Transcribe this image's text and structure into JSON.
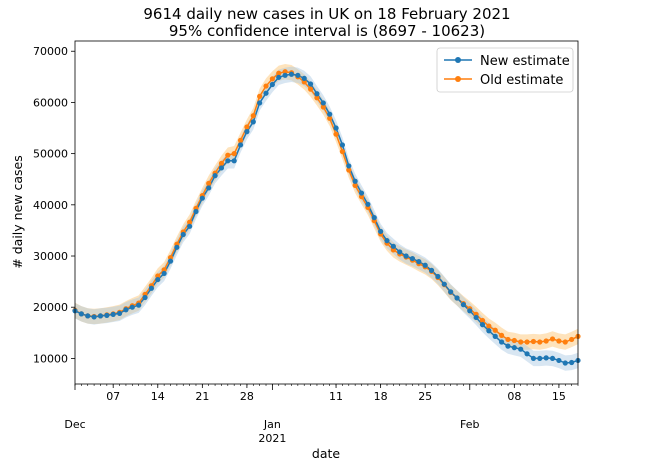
{
  "chart_data": {
    "type": "line",
    "title_line1": "9614 daily new cases in UK on 18 February 2021",
    "title_line2": "95% confidence interval is (8697 - 10623)",
    "xlabel": "date",
    "ylabel": "# daily new cases",
    "ylim": [
      5000,
      72000
    ],
    "xlim": [
      "2020-12-01",
      "2021-02-18"
    ],
    "yticks": [
      10000,
      20000,
      30000,
      40000,
      50000,
      60000,
      70000
    ],
    "ytick_labels": [
      "10000",
      "20000",
      "30000",
      "40000",
      "50000",
      "60000",
      "70000"
    ],
    "xticks_minor": [
      {
        "date": "2020-12-07",
        "label": "07"
      },
      {
        "date": "2020-12-14",
        "label": "14"
      },
      {
        "date": "2020-12-21",
        "label": "21"
      },
      {
        "date": "2020-12-28",
        "label": "28"
      },
      {
        "date": "2021-01-11",
        "label": "11"
      },
      {
        "date": "2021-01-18",
        "label": "18"
      },
      {
        "date": "2021-01-25",
        "label": "25"
      },
      {
        "date": "2021-02-08",
        "label": "08"
      },
      {
        "date": "2021-02-15",
        "label": "15"
      }
    ],
    "xticks_major": [
      {
        "date": "2020-12-01",
        "label": "Dec",
        "sub": ""
      },
      {
        "date": "2021-01-01",
        "label": "Jan",
        "sub": "2021"
      },
      {
        "date": "2021-02-01",
        "label": "Feb",
        "sub": ""
      }
    ],
    "grid": false,
    "legend_position": "top-right",
    "x": [
      "2020-12-01",
      "2020-12-02",
      "2020-12-03",
      "2020-12-04",
      "2020-12-05",
      "2020-12-06",
      "2020-12-07",
      "2020-12-08",
      "2020-12-09",
      "2020-12-10",
      "2020-12-11",
      "2020-12-12",
      "2020-12-13",
      "2020-12-14",
      "2020-12-15",
      "2020-12-16",
      "2020-12-17",
      "2020-12-18",
      "2020-12-19",
      "2020-12-20",
      "2020-12-21",
      "2020-12-22",
      "2020-12-23",
      "2020-12-24",
      "2020-12-25",
      "2020-12-26",
      "2020-12-27",
      "2020-12-28",
      "2020-12-29",
      "2020-12-30",
      "2020-12-31",
      "2021-01-01",
      "2021-01-02",
      "2021-01-03",
      "2021-01-04",
      "2021-01-05",
      "2021-01-06",
      "2021-01-07",
      "2021-01-08",
      "2021-01-09",
      "2021-01-10",
      "2021-01-11",
      "2021-01-12",
      "2021-01-13",
      "2021-01-14",
      "2021-01-15",
      "2021-01-16",
      "2021-01-17",
      "2021-01-18",
      "2021-01-19",
      "2021-01-20",
      "2021-01-21",
      "2021-01-22",
      "2021-01-23",
      "2021-01-24",
      "2021-01-25",
      "2021-01-26",
      "2021-01-27",
      "2021-01-28",
      "2021-01-29",
      "2021-01-30",
      "2021-01-31",
      "2021-02-01",
      "2021-02-02",
      "2021-02-03",
      "2021-02-04",
      "2021-02-05",
      "2021-02-06",
      "2021-02-07",
      "2021-02-08",
      "2021-02-09",
      "2021-02-10",
      "2021-02-11",
      "2021-02-12",
      "2021-02-13",
      "2021-02-14",
      "2021-02-15",
      "2021-02-16",
      "2021-02-17",
      "2021-02-18"
    ],
    "series": [
      {
        "name": "New estimate",
        "color": "#1f77b4",
        "values": [
          19300,
          18700,
          18300,
          18100,
          18300,
          18400,
          18600,
          18800,
          19500,
          20000,
          20400,
          21900,
          23700,
          25400,
          26600,
          29000,
          31700,
          34200,
          35800,
          38700,
          41300,
          43300,
          45700,
          47200,
          48600,
          48600,
          51700,
          54300,
          56200,
          59900,
          61800,
          63500,
          64900,
          65300,
          65500,
          65300,
          64700,
          63600,
          61700,
          59900,
          57700,
          55000,
          51700,
          47600,
          44600,
          42300,
          40100,
          37500,
          34800,
          33000,
          31900,
          30800,
          30000,
          29500,
          28900,
          28200,
          27200,
          26000,
          24500,
          23000,
          21800,
          20500,
          19300,
          18000,
          16600,
          15400,
          14300,
          13200,
          12400,
          12100,
          11800,
          10900,
          10000,
          10000,
          10100,
          10000,
          9600,
          9100,
          9200,
          9600
        ],
        "ci": 1500
      },
      {
        "name": "Old estimate",
        "color": "#ff7f0e",
        "values": [
          19400,
          18700,
          18300,
          18200,
          18300,
          18500,
          18700,
          19000,
          19700,
          20300,
          20800,
          22500,
          24200,
          26100,
          27300,
          29700,
          32300,
          34700,
          36600,
          39300,
          41800,
          44200,
          46200,
          48100,
          49700,
          50000,
          52600,
          55200,
          57400,
          61200,
          63200,
          64600,
          65700,
          66000,
          65800,
          65000,
          64000,
          62600,
          60900,
          59100,
          56900,
          53800,
          50400,
          46800,
          43800,
          41600,
          39500,
          36900,
          34300,
          32500,
          31200,
          30400,
          29800,
          29200,
          28500,
          27900,
          27000,
          25800,
          24400,
          22900,
          21800,
          20700,
          19700,
          18600,
          17400,
          16300,
          15500,
          14500,
          13700,
          13500,
          13200,
          13200,
          13300,
          13200,
          13400,
          13800,
          13400,
          13200,
          13700,
          14300
        ],
        "ci": 1500
      }
    ]
  }
}
